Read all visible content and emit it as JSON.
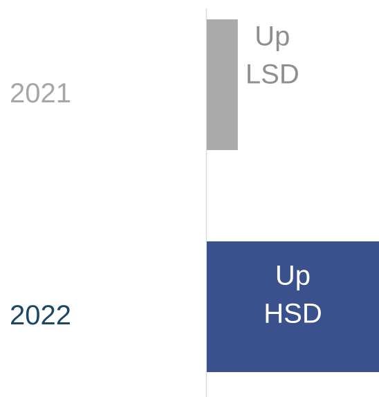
{
  "chart_data": {
    "type": "bar",
    "orientation": "horizontal",
    "categories": [
      "2021",
      "2022"
    ],
    "category_colors": [
      "#a6a6a6",
      "#1b4866"
    ],
    "values": [
      18,
      100
    ],
    "value_labels": [
      [
        "Up",
        "LSD"
      ],
      [
        "Up",
        "HSD"
      ]
    ],
    "colors": [
      "#aaaaaa",
      "#3a518e"
    ],
    "label_colors": [
      "#8f8f8f",
      "#ffffff"
    ],
    "xlim": [
      0,
      100
    ]
  }
}
